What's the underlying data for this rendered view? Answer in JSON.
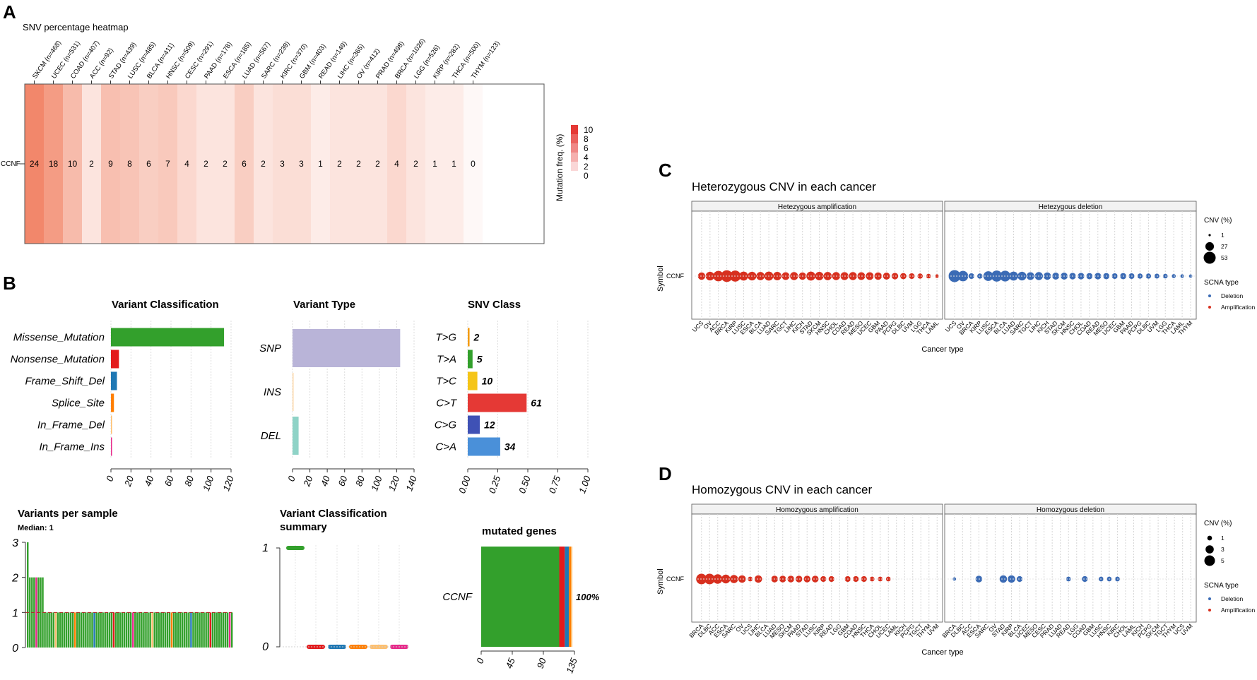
{
  "panels": {
    "A": "A",
    "B": "B",
    "C": "C",
    "D": "D"
  },
  "colors": {
    "heat_max": "#e53935",
    "missense": "#33a02c",
    "nonsense": "#e31a1c",
    "frameshift": "#1f78b4",
    "splice": "#ff7f00",
    "inframe_del": "#fdbf6f",
    "inframe_ins": "#e7298a",
    "snp": "#b9b4d8",
    "ins": "#fdd8a8",
    "del": "#8fd3c7",
    "tg": "#f39c12",
    "ta": "#33a02c",
    "tc": "#f5c518",
    "ct": "#e53935",
    "cg": "#3f51b5",
    "ca": "#4a90d9",
    "amp": "#d7301f",
    "dele": "#3b6bb5"
  },
  "heatmap": {
    "title": "SNV percentage heatmap",
    "row_label": "CCNF",
    "legend_title": "Mutation freq. (%)",
    "legend_ticks": [
      "10",
      "8",
      "6",
      "4",
      "2",
      "0"
    ],
    "columns": [
      {
        "label": "SKCM (n=468)",
        "value": 24
      },
      {
        "label": "UCEC (n=531)",
        "value": 18
      },
      {
        "label": "COAD (n=407)",
        "value": 10
      },
      {
        "label": "ACC (n=92)",
        "value": 2
      },
      {
        "label": "STAD (n=439)",
        "value": 9
      },
      {
        "label": "LUSC (n=485)",
        "value": 8
      },
      {
        "label": "BLCA (n=411)",
        "value": 6
      },
      {
        "label": "HNSC (n=509)",
        "value": 7
      },
      {
        "label": "CESC (n=291)",
        "value": 4
      },
      {
        "label": "PAAD (n=178)",
        "value": 2
      },
      {
        "label": "ESCA (n=185)",
        "value": 2
      },
      {
        "label": "LUAD (n=567)",
        "value": 6
      },
      {
        "label": "SARC (n=239)",
        "value": 2
      },
      {
        "label": "KIRC (n=370)",
        "value": 3
      },
      {
        "label": "GBM (n=403)",
        "value": 3
      },
      {
        "label": "READ (n=149)",
        "value": 1
      },
      {
        "label": "LIHC (n=365)",
        "value": 2
      },
      {
        "label": "OV (n=412)",
        "value": 2
      },
      {
        "label": "PRAD (n=498)",
        "value": 2
      },
      {
        "label": "BRCA (n=1026)",
        "value": 4
      },
      {
        "label": "LGG (n=526)",
        "value": 2
      },
      {
        "label": "KIRP (n=282)",
        "value": 1
      },
      {
        "label": "THCA (n=500)",
        "value": 1
      },
      {
        "label": "THYM (n=123)",
        "value": 0
      }
    ]
  },
  "maf": {
    "vc_title": "Variant Classification",
    "vc_classes": [
      {
        "label": "Missense_Mutation",
        "value": 113
      },
      {
        "label": "Nonsense_Mutation",
        "value": 8
      },
      {
        "label": "Frame_Shift_Del",
        "value": 6
      },
      {
        "label": "Splice_Site",
        "value": 3
      },
      {
        "label": "In_Frame_Del",
        "value": 1
      },
      {
        "label": "In_Frame_Ins",
        "value": 1
      }
    ],
    "vc_ticks": [
      "0",
      "20",
      "40",
      "60",
      "80",
      "100",
      "120"
    ],
    "vt_title": "Variant Type",
    "vt_types": [
      {
        "label": "SNP",
        "value": 124
      },
      {
        "label": "INS",
        "value": 1
      },
      {
        "label": "DEL",
        "value": 7
      }
    ],
    "vt_ticks": [
      "0",
      "20",
      "40",
      "60",
      "80",
      "100",
      "120",
      "140"
    ],
    "snv_title": "SNV Class",
    "snv_classes": [
      {
        "label": "T>G",
        "count": "2",
        "fraction": 0.015
      },
      {
        "label": "T>A",
        "count": "5",
        "fraction": 0.04
      },
      {
        "label": "T>C",
        "count": "10",
        "fraction": 0.08
      },
      {
        "label": "C>T",
        "count": "61",
        "fraction": 0.49
      },
      {
        "label": "C>G",
        "count": "12",
        "fraction": 0.1
      },
      {
        "label": "C>A",
        "count": "34",
        "fraction": 0.27
      }
    ],
    "snv_ticks": [
      "0.00",
      "0.25",
      "0.50",
      "0.75",
      "1.00"
    ],
    "vps_title": "Variants per sample",
    "vps_median": "Median: 1",
    "vps_ticks": [
      "0",
      "1",
      "2",
      "3"
    ],
    "vcs_title_line1": "Variant Classification",
    "vcs_title_line2": "summary",
    "vcs_ticks": [
      "0",
      "1"
    ],
    "mg_title": "mutated genes",
    "mg_gene": "CCNF",
    "mg_pct": "100%",
    "mg_ticks": [
      "0",
      "45",
      "90",
      "135"
    ]
  },
  "cnv_het": {
    "title": "Heterozygous CNV in each cancer",
    "facet_left": "Hetezygous amplification",
    "facet_right": "Hetezygous deletion",
    "ylabel": "Symbol",
    "xlabel": "Cancer type",
    "row_label": "CCNF",
    "legend_size_title": "CNV (%)",
    "legend_sizes": [
      "1",
      "27",
      "53"
    ],
    "legend_type_title": "SCNA type",
    "legend_types": [
      "Deletion",
      "Amplification"
    ],
    "left_labels": [
      "UCS",
      "OV",
      "ACC",
      "BRCA",
      "KIRP",
      "LUSC",
      "ESCA",
      "BLCA",
      "LUAD",
      "SARC",
      "TGCT",
      "LIHC",
      "KICH",
      "STAD",
      "SKCM",
      "HNSC",
      "CHOL",
      "COAD",
      "READ",
      "MESO",
      "UCEC",
      "GBM",
      "PAAD",
      "PCPG",
      "DLBC",
      "UVM",
      "LGG",
      "THCA",
      "LAML"
    ],
    "left_values": [
      20,
      28,
      40,
      50,
      45,
      30,
      28,
      25,
      30,
      26,
      22,
      24,
      20,
      30,
      26,
      25,
      24,
      23,
      24,
      22,
      22,
      20,
      18,
      16,
      14,
      12,
      10,
      8,
      5
    ],
    "right_labels": [
      "UCS",
      "OV",
      "BRCA",
      "KIRP",
      "LUSC",
      "ESCA",
      "BLCA",
      "LUAD",
      "SARC",
      "TGCT",
      "LIHC",
      "KICH",
      "STAD",
      "SKCM",
      "HNSC",
      "CHOL",
      "COAD",
      "READ",
      "MESO",
      "UCEC",
      "GBM",
      "PAAD",
      "PCPG",
      "DLBC",
      "UVM",
      "LGG",
      "THCA",
      "LAML",
      "THYM"
    ],
    "right_values": [
      53,
      40,
      12,
      10,
      35,
      45,
      42,
      30,
      28,
      22,
      24,
      20,
      18,
      18,
      16,
      16,
      14,
      16,
      14,
      12,
      14,
      12,
      10,
      10,
      9,
      8,
      6,
      5,
      4
    ]
  },
  "cnv_hom": {
    "title": "Homozygous CNV in each cancer",
    "facet_left": "Homozygous amplification",
    "facet_right": "Homozygous deletion",
    "ylabel": "Symbol",
    "xlabel": "Cancer type",
    "row_label": "CCNF",
    "legend_size_title": "CNV (%)",
    "legend_sizes": [
      "1",
      "3",
      "5"
    ],
    "legend_type_title": "SCNA type",
    "legend_types": [
      "Deletion",
      "Amplification"
    ],
    "left_labels": [
      "BRCA",
      "DLBC",
      "ACC",
      "ESCA",
      "SARC",
      "OV",
      "UCS",
      "LIHC",
      "BLCA",
      "LUAD",
      "MESO",
      "SKCM",
      "PAAD",
      "STAD",
      "LUSC",
      "KIRP",
      "READ",
      "LGG",
      "GBM",
      "COAD",
      "HNSC",
      "THCA",
      "CHOL",
      "UCEC",
      "LAML",
      "KICH",
      "PCPG",
      "TGCT",
      "THYM",
      "UVM"
    ],
    "left_values": [
      5,
      5,
      4,
      3.5,
      3,
      2.5,
      1,
      2.5,
      0,
      2,
      2,
      2,
      2,
      2,
      2,
      1.5,
      1.5,
      0,
      1.5,
      1.5,
      1.5,
      1,
      1,
      1,
      0,
      0,
      0,
      0,
      0,
      0
    ],
    "right_labels": [
      "BRCA",
      "DLBC",
      "ACC",
      "ESCA",
      "SARC",
      "OV",
      "STAD",
      "KIRP",
      "BLCA",
      "UCEC",
      "MESO",
      "CESC",
      "PRAD",
      "LUAD",
      "READ",
      "LGG",
      "COAD",
      "GBM",
      "LUSC",
      "HNSC",
      "KIRC",
      "CHOL",
      "LAML",
      "KICH",
      "PCPG",
      "SKCM",
      "TGCT",
      "THYM",
      "UCS",
      "UVM"
    ],
    "right_values": [
      0.5,
      0,
      0,
      2,
      0,
      0,
      2.5,
      2.5,
      1.5,
      0,
      0,
      0,
      0,
      0,
      1,
      0,
      1.5,
      0,
      1,
      1,
      1,
      0,
      0,
      0,
      0,
      0,
      0,
      0,
      0,
      0
    ]
  },
  "chart_data": [
    {
      "type": "heatmap",
      "title": "SNV percentage heatmap",
      "rows": [
        "CCNF"
      ],
      "categories": [
        "SKCM",
        "UCEC",
        "COAD",
        "ACC",
        "STAD",
        "LUSC",
        "BLCA",
        "HNSC",
        "CESC",
        "PAAD",
        "ESCA",
        "LUAD",
        "SARC",
        "KIRC",
        "GBM",
        "READ",
        "LIHC",
        "OV",
        "PRAD",
        "BRCA",
        "LGG",
        "KIRP",
        "THCA",
        "THYM"
      ],
      "values": [
        24,
        18,
        10,
        2,
        9,
        8,
        6,
        7,
        4,
        2,
        2,
        6,
        2,
        3,
        3,
        1,
        2,
        2,
        2,
        4,
        2,
        1,
        1,
        0
      ],
      "legend": "Mutation freq. (%)"
    },
    {
      "type": "bar",
      "title": "Variant Classification",
      "categories": [
        "Missense_Mutation",
        "Nonsense_Mutation",
        "Frame_Shift_Del",
        "Splice_Site",
        "In_Frame_Del",
        "In_Frame_Ins"
      ],
      "values": [
        113,
        8,
        6,
        3,
        1,
        1
      ],
      "xlim": [
        0,
        120
      ]
    },
    {
      "type": "bar",
      "title": "Variant Type",
      "categories": [
        "SNP",
        "INS",
        "DEL"
      ],
      "values": [
        124,
        1,
        7
      ],
      "xlim": [
        0,
        140
      ]
    },
    {
      "type": "bar",
      "title": "SNV Class",
      "categories": [
        "T>G",
        "T>A",
        "T>C",
        "C>T",
        "C>G",
        "C>A"
      ],
      "values": [
        2,
        5,
        10,
        61,
        12,
        34
      ],
      "xlim": [
        0,
        1
      ]
    },
    {
      "type": "scatter",
      "title": "Heterozygous CNV in each cancer",
      "series": [
        {
          "name": "Amplification"
        },
        {
          "name": "Deletion"
        }
      ],
      "xlabel": "Cancer type",
      "ylabel": "Symbol"
    },
    {
      "type": "scatter",
      "title": "Homozygous CNV in each cancer",
      "series": [
        {
          "name": "Amplification"
        },
        {
          "name": "Deletion"
        }
      ],
      "xlabel": "Cancer type",
      "ylabel": "Symbol"
    }
  ]
}
